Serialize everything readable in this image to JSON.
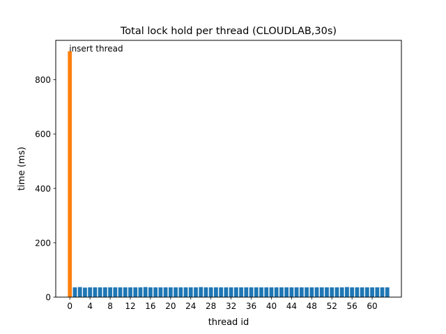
{
  "chart_data": {
    "type": "bar",
    "title": "Total lock hold per thread (CLOUDLAB,30s)",
    "xlabel": "thread id",
    "ylabel": "time (ms)",
    "x_ticks": [
      0,
      4,
      8,
      12,
      16,
      20,
      24,
      28,
      32,
      36,
      40,
      44,
      48,
      52,
      56,
      60
    ],
    "y_ticks": [
      0,
      200,
      400,
      600,
      800
    ],
    "xlim": [
      -2.8,
      65.8
    ],
    "ylim": [
      0,
      945
    ],
    "grid": false,
    "annotation": {
      "text": "insert thread",
      "x": 0,
      "y": 905
    },
    "colors": {
      "insert": "#ff7f0e",
      "worker": "#1f77b4"
    },
    "series": [
      {
        "name": "insert thread",
        "x": [
          0
        ],
        "values": [
          905
        ],
        "color": "#ff7f0e"
      },
      {
        "name": "worker threads",
        "x": [
          1,
          2,
          3,
          4,
          5,
          6,
          7,
          8,
          9,
          10,
          11,
          12,
          13,
          14,
          15,
          16,
          17,
          18,
          19,
          20,
          21,
          22,
          23,
          24,
          25,
          26,
          27,
          28,
          29,
          30,
          31,
          32,
          33,
          34,
          35,
          36,
          37,
          38,
          39,
          40,
          41,
          42,
          43,
          44,
          45,
          46,
          47,
          48,
          49,
          50,
          51,
          52,
          53,
          54,
          55,
          56,
          57,
          58,
          59,
          60,
          61,
          62,
          63
        ],
        "values": [
          36,
          37,
          35,
          36,
          36,
          36,
          36,
          36,
          36,
          36,
          36,
          36,
          36,
          36,
          37,
          36,
          36,
          36,
          36,
          36,
          36,
          36,
          36,
          36,
          36,
          37,
          36,
          36,
          36,
          36,
          36,
          36,
          36,
          36,
          36,
          36,
          36,
          36,
          36,
          36,
          36,
          36,
          36,
          36,
          36,
          36,
          36,
          36,
          36,
          36,
          36,
          36,
          36,
          36,
          37,
          36,
          36,
          36,
          36,
          36,
          36,
          36,
          36
        ],
        "color": "#1f77b4"
      }
    ]
  }
}
